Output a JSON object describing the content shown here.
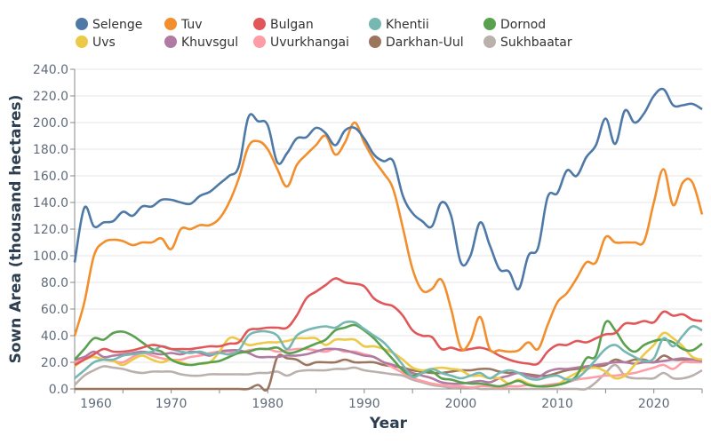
{
  "chart_data": {
    "type": "line",
    "title": "",
    "xlabel": "Year",
    "ylabel": "Sown Area (thousand hectares)",
    "xlim": [
      1960,
      2025
    ],
    "ylim": [
      0,
      240
    ],
    "x_ticks": [
      "1960",
      "1970",
      "1980",
      "1990",
      "2000",
      "2010",
      "2020"
    ],
    "y_ticks": [
      "0.0",
      "20.0",
      "40.0",
      "60.0",
      "80.0",
      "100.0",
      "120.0",
      "140.0",
      "160.0",
      "180.0",
      "200.0",
      "220.0",
      "240.0"
    ],
    "grid": true,
    "legend_position": "top",
    "x_start": 1960,
    "series": [
      {
        "name": "Selenge",
        "color": "#4e79a7",
        "values": [
          95,
          136,
          122,
          125,
          126,
          133,
          130,
          137,
          137,
          142,
          142,
          140,
          139,
          145,
          148,
          154,
          160,
          167,
          204,
          201,
          198,
          170,
          177,
          188,
          189,
          196,
          192,
          183,
          194,
          196,
          188,
          176,
          171,
          171,
          145,
          132,
          126,
          122,
          140,
          130,
          95,
          100,
          125,
          108,
          90,
          88,
          75,
          100,
          106,
          144,
          147,
          164,
          160,
          174,
          183,
          203,
          184,
          209,
          200,
          207,
          220,
          225,
          213,
          213,
          214,
          210
        ]
      },
      {
        "name": "Tuv",
        "color": "#f28e2b",
        "values": [
          40,
          65,
          100,
          110,
          112,
          111,
          108,
          110,
          110,
          113,
          105,
          120,
          120,
          123,
          123,
          128,
          140,
          158,
          182,
          186,
          180,
          165,
          152,
          168,
          176,
          183,
          190,
          176,
          185,
          200,
          185,
          172,
          162,
          150,
          121,
          90,
          74,
          75,
          82,
          60,
          31,
          36,
          54,
          30,
          29,
          28,
          29,
          35,
          30,
          48,
          65,
          72,
          83,
          95,
          95,
          114,
          110,
          110,
          110,
          111,
          140,
          165,
          138,
          155,
          155,
          131
        ]
      },
      {
        "name": "Bulgan",
        "color": "#e15759",
        "values": [
          18,
          22,
          26,
          30,
          28,
          28,
          29,
          31,
          33,
          32,
          30,
          30,
          30,
          31,
          32,
          32,
          34,
          35,
          44,
          45,
          46,
          46,
          46,
          55,
          68,
          73,
          78,
          83,
          80,
          79,
          77,
          68,
          64,
          62,
          55,
          44,
          40,
          39,
          30,
          31,
          29,
          30,
          31,
          29,
          25,
          22,
          20,
          19,
          19,
          28,
          33,
          33,
          36,
          35,
          38,
          41,
          42,
          49,
          49,
          51,
          50,
          58,
          55,
          56,
          52,
          51
        ]
      },
      {
        "name": "Khentii",
        "color": "#76b7b2",
        "values": [
          8,
          14,
          20,
          22,
          22,
          25,
          26,
          27,
          28,
          32,
          30,
          28,
          27,
          28,
          26,
          27,
          26,
          29,
          40,
          43,
          43,
          40,
          30,
          40,
          44,
          46,
          47,
          46,
          50,
          50,
          45,
          40,
          35,
          27,
          18,
          9,
          12,
          15,
          12,
          10,
          8,
          10,
          12,
          8,
          12,
          14,
          12,
          8,
          7,
          9,
          10,
          7,
          8,
          14,
          22,
          30,
          33,
          28,
          24,
          21,
          23,
          38,
          32,
          40,
          47,
          44
        ]
      },
      {
        "name": "Dornod",
        "color": "#59a14f",
        "values": [
          22,
          30,
          38,
          37,
          42,
          43,
          40,
          35,
          30,
          28,
          22,
          19,
          18,
          19,
          20,
          21,
          24,
          27,
          28,
          30,
          30,
          31,
          27,
          28,
          31,
          34,
          37,
          44,
          46,
          48,
          44,
          38,
          30,
          22,
          14,
          10,
          12,
          13,
          8,
          7,
          5,
          4,
          4,
          3,
          2,
          4,
          6,
          3,
          2,
          2,
          3,
          5,
          10,
          23,
          25,
          50,
          44,
          33,
          28,
          33,
          36,
          37,
          35,
          30,
          29,
          34
        ]
      },
      {
        "name": "Uvs",
        "color": "#edc948",
        "values": [
          17,
          22,
          24,
          22,
          21,
          18,
          22,
          25,
          22,
          20,
          22,
          20,
          18,
          19,
          20,
          28,
          38,
          37,
          33,
          34,
          35,
          35,
          36,
          38,
          38,
          38,
          33,
          37,
          37,
          37,
          32,
          32,
          30,
          27,
          22,
          16,
          14,
          15,
          16,
          15,
          14,
          10,
          10,
          8,
          8,
          4,
          7,
          4,
          2,
          2,
          3,
          8,
          12,
          15,
          16,
          13,
          8,
          10,
          18,
          26,
          33,
          42,
          38,
          32,
          24,
          22
        ]
      },
      {
        "name": "Khuvsgul",
        "color": "#b07aa1",
        "values": [
          22,
          24,
          28,
          24,
          25,
          26,
          27,
          28,
          27,
          26,
          27,
          26,
          28,
          27,
          25,
          28,
          29,
          29,
          27,
          24,
          24,
          24,
          25,
          25,
          26,
          28,
          30,
          30,
          29,
          27,
          25,
          24,
          20,
          18,
          15,
          12,
          10,
          8,
          5,
          4,
          4,
          5,
          6,
          5,
          8,
          10,
          12,
          10,
          9,
          13,
          15,
          15,
          16,
          17,
          18,
          19,
          20,
          20,
          19,
          20,
          20,
          21,
          22,
          23,
          22,
          21
        ]
      },
      {
        "name": "Uvurkhangai",
        "color": "#ff9da7",
        "values": [
          20,
          23,
          24,
          22,
          21,
          20,
          24,
          27,
          25,
          23,
          22,
          22,
          24,
          25,
          27,
          28,
          28,
          27,
          29,
          30,
          30,
          28,
          29,
          30,
          30,
          29,
          28,
          30,
          28,
          28,
          26,
          24,
          20,
          16,
          12,
          8,
          6,
          4,
          3,
          2,
          2,
          1,
          2,
          2,
          1,
          2,
          2,
          3,
          2,
          3,
          4,
          5,
          7,
          8,
          9,
          10,
          10,
          11,
          12,
          14,
          16,
          18,
          15,
          20,
          20,
          20
        ]
      },
      {
        "name": "Darkhan-Uul",
        "color": "#9c755f",
        "values": [
          0,
          0,
          0,
          0,
          0,
          0,
          0,
          0,
          0,
          0,
          0,
          0,
          0,
          0,
          0,
          0,
          0,
          0,
          0,
          3,
          0,
          24,
          23,
          22,
          18,
          20,
          20,
          20,
          22,
          20,
          20,
          20,
          18,
          17,
          16,
          14,
          13,
          12,
          12,
          13,
          14,
          14,
          15,
          15,
          13,
          12,
          12,
          11,
          10,
          10,
          12,
          14,
          15,
          16,
          17,
          18,
          22,
          20,
          22,
          22,
          20,
          25,
          22,
          22,
          22,
          22
        ]
      },
      {
        "name": "Sukhbaatar",
        "color": "#bab0ac",
        "values": [
          3,
          10,
          14,
          17,
          16,
          15,
          13,
          12,
          13,
          13,
          13,
          11,
          10,
          10,
          11,
          11,
          11,
          11,
          11,
          12,
          12,
          13,
          10,
          13,
          14,
          14,
          14,
          15,
          15,
          16,
          14,
          13,
          12,
          11,
          10,
          7,
          5,
          3,
          2,
          1,
          1,
          1,
          0,
          0,
          0,
          0,
          0,
          0,
          0,
          0,
          0,
          0,
          0,
          0,
          5,
          12,
          18,
          10,
          8,
          8,
          8,
          12,
          8,
          8,
          10,
          14
        ]
      }
    ]
  }
}
